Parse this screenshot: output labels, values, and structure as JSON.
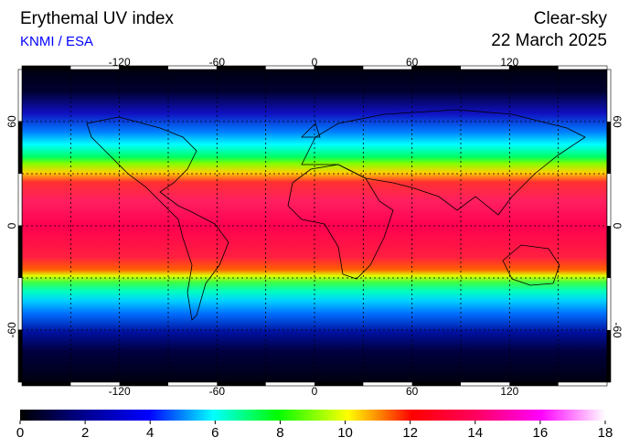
{
  "header": {
    "title": "Erythemal UV index",
    "source": "KNMI / ESA",
    "condition": "Clear-sky",
    "date": "22 March 2025"
  },
  "map": {
    "lonlim": [
      -180,
      180
    ],
    "latlim": [
      -90,
      90
    ],
    "lon_ticks": [
      -120,
      -60,
      0,
      60,
      120
    ],
    "lat_ticks": [
      60,
      0,
      -60
    ],
    "grid_step": 30
  },
  "colorbar": {
    "lim": [
      0,
      18
    ],
    "ticks": [
      0,
      2,
      4,
      6,
      8,
      10,
      12,
      14,
      16,
      18
    ]
  }
}
